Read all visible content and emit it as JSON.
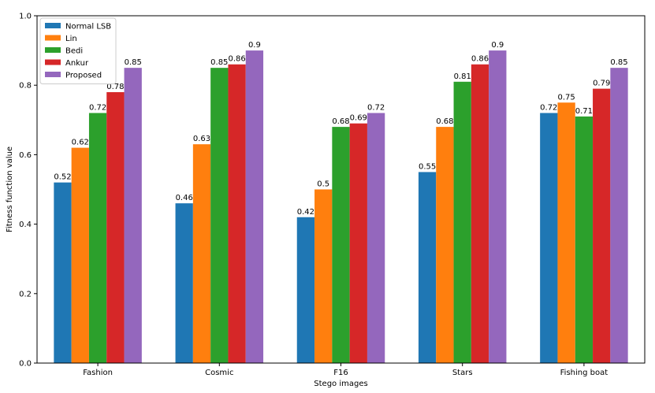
{
  "chart_data": {
    "type": "bar",
    "title": "",
    "xlabel": "Stego images",
    "ylabel": "Fitness function value",
    "ylim": [
      0,
      1.0
    ],
    "yticks": [
      0.0,
      0.2,
      0.4,
      0.6,
      0.8,
      1.0
    ],
    "ytick_labels": [
      "0.0",
      "0.2",
      "0.4",
      "0.6",
      "0.8",
      "1.0"
    ],
    "categories": [
      "Fashion",
      "Cosmic",
      "F16",
      "Stars",
      "Fishing boat"
    ],
    "grid": false,
    "legend_position": "top-left",
    "series": [
      {
        "name": "Normal LSB",
        "color": "#1f77b4",
        "values": [
          0.52,
          0.46,
          0.42,
          0.55,
          0.72
        ],
        "labels": [
          "0.52",
          "0.46",
          "0.42",
          "0.55",
          "0.72"
        ]
      },
      {
        "name": "Lin",
        "color": "#ff7f0e",
        "values": [
          0.62,
          0.63,
          0.5,
          0.68,
          0.75
        ],
        "labels": [
          "0.62",
          "0.63",
          "0.5",
          "0.68",
          "0.75"
        ]
      },
      {
        "name": "Bedi",
        "color": "#2ca02c",
        "values": [
          0.72,
          0.85,
          0.68,
          0.81,
          0.71
        ],
        "labels": [
          "0.72",
          "0.85",
          "0.68",
          "0.81",
          "0.71"
        ]
      },
      {
        "name": "Ankur",
        "color": "#d62728",
        "values": [
          0.78,
          0.86,
          0.69,
          0.86,
          0.79
        ],
        "labels": [
          "0.78",
          "0.86",
          "0.69",
          "0.86",
          "0.79"
        ]
      },
      {
        "name": "Proposed",
        "color": "#9467bd",
        "values": [
          0.85,
          0.9,
          0.72,
          0.9,
          0.85
        ],
        "labels": [
          "0.85",
          "0.9",
          "0.72",
          "0.9",
          "0.85"
        ]
      }
    ]
  }
}
